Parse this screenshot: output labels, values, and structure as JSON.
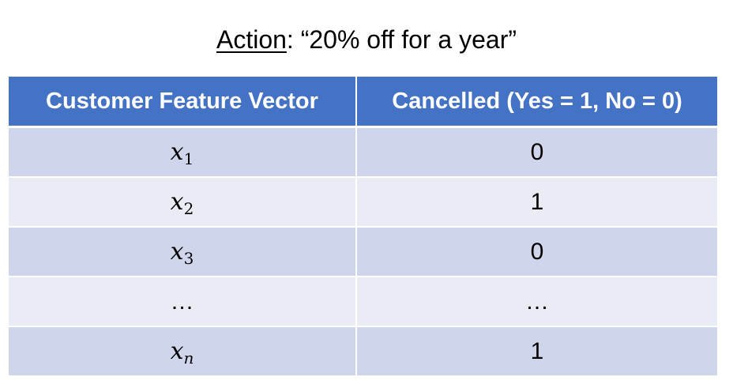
{
  "title": {
    "label": "Action",
    "separator": ": ",
    "text": "“20% off for a year”"
  },
  "table": {
    "headers": [
      "Customer Feature Vector",
      "Cancelled (Yes = 1, No = 0)"
    ],
    "rows": [
      {
        "var": "x",
        "sub": "1",
        "value": "0"
      },
      {
        "var": "x",
        "sub": "2",
        "value": "1"
      },
      {
        "var": "x",
        "sub": "3",
        "value": "0"
      },
      {
        "var": "…",
        "sub": "",
        "value": "…"
      },
      {
        "var": "x",
        "sub": "n",
        "value": "1"
      }
    ]
  },
  "colors": {
    "header_bg": "#4472c4",
    "row_dark": "#cfd5ea",
    "row_light": "#e9ebf5"
  }
}
